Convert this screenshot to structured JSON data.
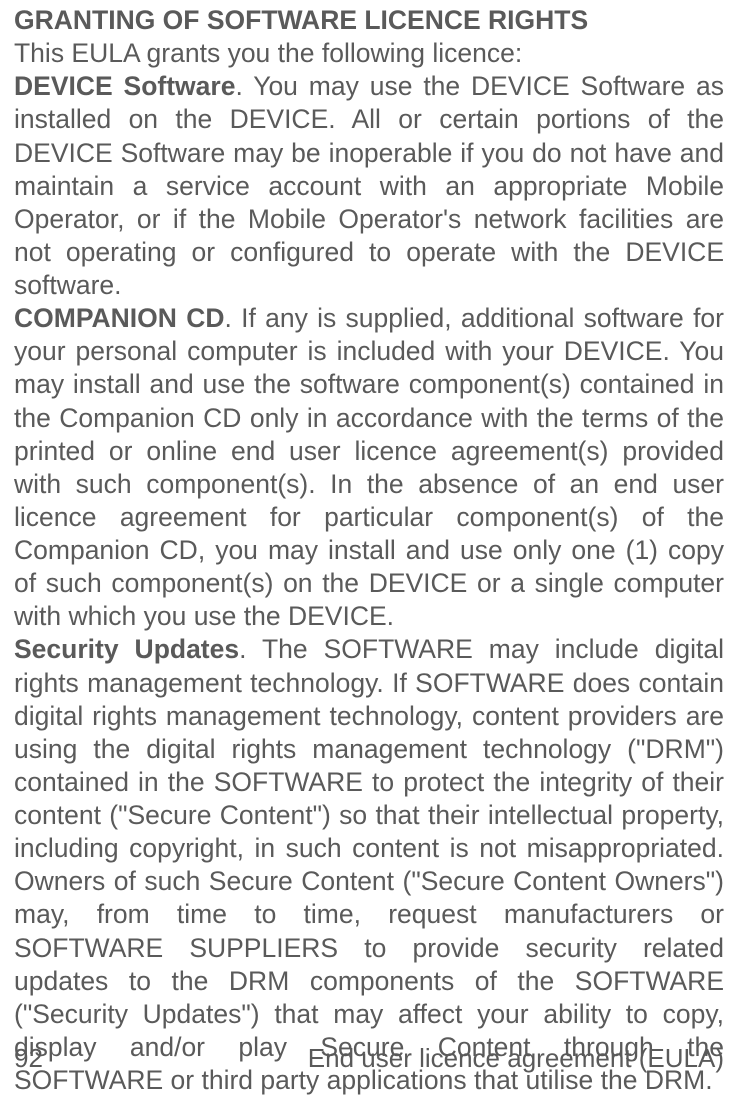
{
  "heading": "GRANTING OF SOFTWARE LICENCE RIGHTS",
  "intro": "This EULA grants you the following licence:",
  "sections": [
    {
      "lead": "DEVICE Software",
      "body": ". You may use the DEVICE Software as installed on the DEVICE.  All or certain portions of the DEVICE Software may be inoperable if you do not have and maintain a service account with an appropriate Mobile Operator, or if the Mobile Operator's network facilities are not operating or configured to operate with the DEVICE software."
    },
    {
      "lead": "COMPANION CD",
      "body": ". If any is supplied, additional software for your personal computer is included with your DEVICE. You may install and use the software component(s) contained in the Companion CD only in accordance with the terms of the printed or online end user licence agreement(s) provided with such component(s).  In the absence of an end user licence agreement for particular component(s) of the Companion CD, you may install and use only one (1) copy of such component(s) on the DEVICE or a single computer with which you use the DEVICE."
    },
    {
      "lead": "Security Updates",
      "body": ". The SOFTWARE may include digital rights management technology.  If SOFTWARE does contain digital rights management technology, content providers are using the digital rights management technology (\"DRM\") contained in the SOFTWARE to protect the integrity of their content (\"Secure Content\") so that their intellectual property, including copyright, in such content is not misappropriated. Owners of such Secure Content (\"Secure Content Owners\") may, from time to time, request manufacturers or SOFTWARE SUPPLIERS to provide security related updates to the DRM components of the SOFTWARE (\"Security Updates\") that may affect your ability to copy, display and/or play Secure Content through the SOFTWARE or third party applications that utilise the DRM."
    }
  ],
  "footer": {
    "page": "92",
    "title": "End user licence agreement (EULA)"
  },
  "colors": {
    "text": "#5a5a5a",
    "background": "#ffffff"
  },
  "typography": {
    "font_family": "Century Gothic",
    "body_fontsize_pt": 20,
    "heading_weight": "bold"
  }
}
